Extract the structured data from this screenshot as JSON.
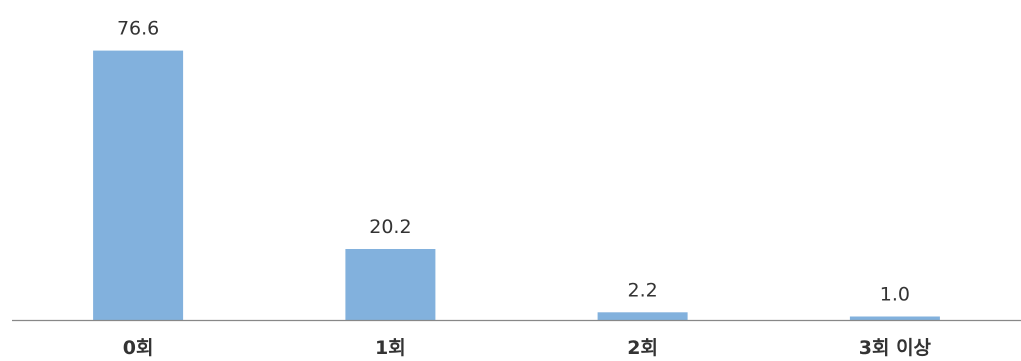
{
  "chart_data": {
    "type": "bar",
    "categories": [
      "0회",
      "1회",
      "2회",
      "3회 이상"
    ],
    "values": [
      76.6,
      20.2,
      2.2,
      1.0
    ],
    "value_labels": [
      "76.6",
      "20.2",
      "2.2",
      "1.0"
    ],
    "title": "",
    "xlabel": "",
    "ylabel": "",
    "ylim": [
      0,
      80
    ],
    "grid": false,
    "legend": "none",
    "bar_color": "#82B1DD",
    "axis_color": "#888888"
  }
}
